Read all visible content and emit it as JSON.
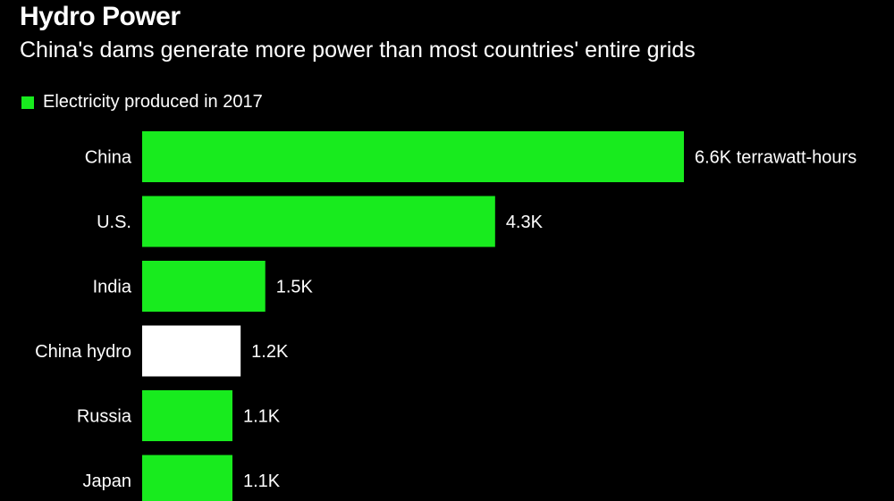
{
  "title": "Hydro Power",
  "subtitle": "China's dams generate more power than most countries' entire grids",
  "colors": {
    "series": "#18eb1e",
    "highlight": "#ffffff",
    "background": "#000000"
  },
  "chart_data": {
    "type": "bar",
    "orientation": "horizontal",
    "legend": [
      "Electricity produced in 2017"
    ],
    "legend_placement": "top-left",
    "categories": [
      "China",
      "U.S.",
      "India",
      "China hydro",
      "Russia",
      "Japan"
    ],
    "values": [
      6600,
      4300,
      1500,
      1200,
      1100,
      1100
    ],
    "labels": [
      "6.6K terrawatt-hours",
      "4.3K",
      "1.5K",
      "1.2K",
      "1.1K",
      "1.1K"
    ],
    "highlight": [
      "China hydro"
    ],
    "grid": false
  }
}
